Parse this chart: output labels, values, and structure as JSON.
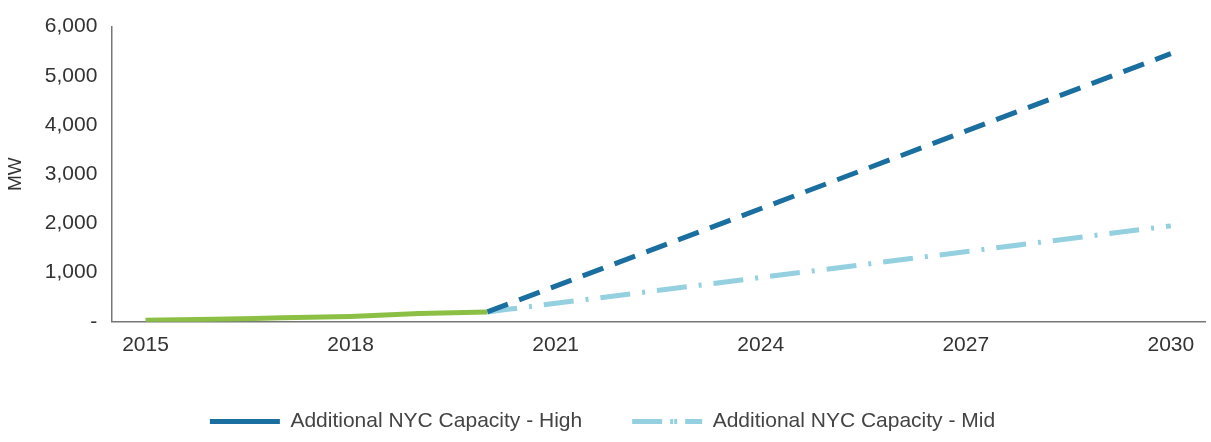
{
  "chart_data": {
    "type": "line",
    "ylabel": "MW",
    "x": [
      2015,
      2016,
      2017,
      2018,
      2019,
      2020,
      2030
    ],
    "series": [
      {
        "color": "#8cc044",
        "values": [
          30,
          50,
          80,
          110,
          170,
          200,
          null
        ],
        "line_style": "solid"
      },
      {
        "name": "Additional NYC Capacity - High",
        "color": "#1a6fa0",
        "values": [
          null,
          null,
          null,
          null,
          null,
          200,
          5450
        ],
        "line_style": "dashed"
      },
      {
        "name": "Additional NYC Capacity - Mid",
        "color": "#94d0df",
        "values": [
          null,
          null,
          null,
          null,
          null,
          200,
          1950
        ],
        "line_style": "dashdot"
      }
    ],
    "xlim": [
      2014.5,
      2030.5
    ],
    "xticks": [
      2015,
      2018,
      2021,
      2024,
      2027,
      2030
    ],
    "ylim": [
      0,
      6000
    ],
    "yticks": [
      {
        "value": 0,
        "label": "-"
      },
      {
        "value": 1000,
        "label": "1,000"
      },
      {
        "value": 2000,
        "label": "2,000"
      },
      {
        "value": 3000,
        "label": "3,000"
      },
      {
        "value": 4000,
        "label": "4,000"
      },
      {
        "value": 5000,
        "label": "5,000"
      },
      {
        "value": 6000,
        "label": "6,000"
      }
    ],
    "grid": false,
    "legend": "bottom",
    "marker": "none"
  }
}
